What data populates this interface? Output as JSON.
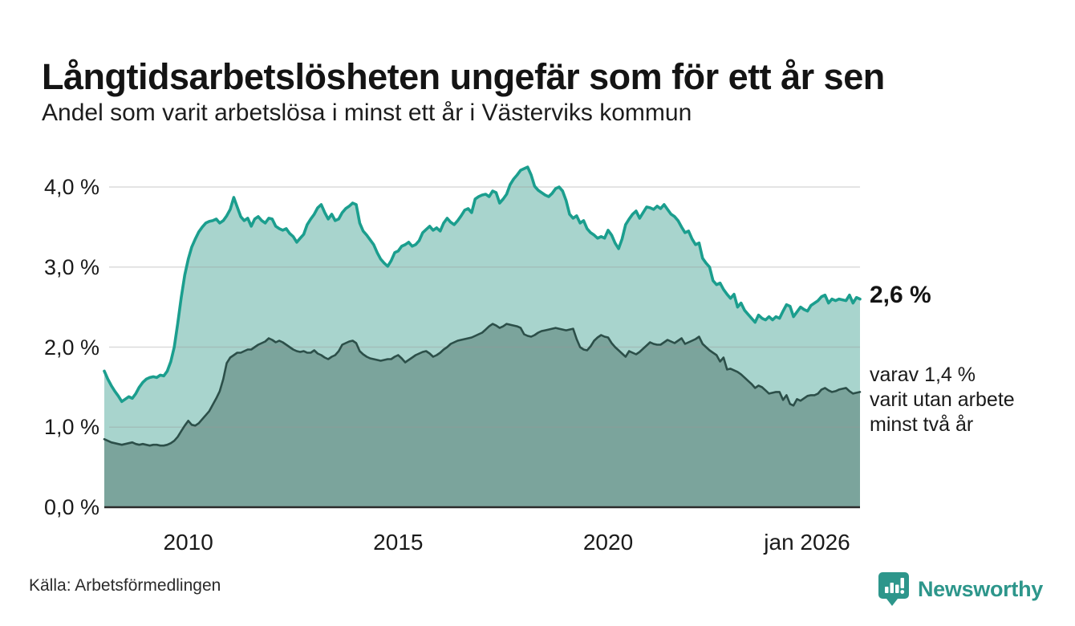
{
  "header": {
    "title": "Långtidsarbetslösheten ungefär som för ett år sen",
    "subtitle": "Andel som varit arbetslösa i minst ett år i Västerviks kommun"
  },
  "annotations": {
    "latest_value_label": "2,6 %",
    "secondary_label": "varav 1,4 %\nvarit utan arbete\nminst två år"
  },
  "footer": {
    "source": "Källa: Arbetsförmedlingen",
    "brand": "Newsworthy"
  },
  "colors": {
    "line_primary": "#1b9e8e",
    "fill_primary": "#a8d4cd",
    "line_secondary": "#2c4f49",
    "fill_secondary": "#7ba49c",
    "gridline": "#999999",
    "axis": "#2b2b2b",
    "brand_teal": "#2d968b"
  },
  "chart_data": {
    "type": "area",
    "title": "Långtidsarbetslösheten ungefär som för ett år sen",
    "subtitle": "Andel som varit arbetslösa i minst ett år i Västerviks kommun",
    "x_start": "2008-01",
    "x_end": "2026-01",
    "x_tick_labels": [
      "2010",
      "2015",
      "2020",
      "jan 2026"
    ],
    "x_tick_months_from_start": [
      24,
      84,
      144,
      216
    ],
    "y_tick_labels": [
      "0,0 %",
      "1,0 %",
      "2,0 %",
      "3,0 %",
      "4,0 %"
    ],
    "y_tick_values": [
      0,
      1,
      2,
      3,
      4
    ],
    "ylim": [
      0,
      4.4
    ],
    "grid": true,
    "legend_position": "right-annotations",
    "unit": "%",
    "series": [
      {
        "name": "Andel arbetslösa minst ett år",
        "end_label": "2,6 %",
        "end_value": 2.6,
        "line_color": "#1b9e8e",
        "fill_color": "#a8d4cd",
        "values": [
          1.7,
          1.6,
          1.52,
          1.45,
          1.39,
          1.32,
          1.35,
          1.38,
          1.36,
          1.42,
          1.5,
          1.56,
          1.6,
          1.62,
          1.63,
          1.62,
          1.65,
          1.64,
          1.7,
          1.82,
          2.0,
          2.3,
          2.62,
          2.9,
          3.1,
          3.25,
          3.35,
          3.44,
          3.5,
          3.55,
          3.57,
          3.58,
          3.6,
          3.55,
          3.58,
          3.64,
          3.72,
          3.87,
          3.75,
          3.63,
          3.58,
          3.61,
          3.51,
          3.6,
          3.63,
          3.58,
          3.55,
          3.61,
          3.6,
          3.51,
          3.48,
          3.46,
          3.48,
          3.42,
          3.38,
          3.31,
          3.36,
          3.41,
          3.53,
          3.6,
          3.66,
          3.74,
          3.78,
          3.68,
          3.6,
          3.66,
          3.58,
          3.6,
          3.68,
          3.73,
          3.76,
          3.8,
          3.78,
          3.55,
          3.45,
          3.4,
          3.34,
          3.28,
          3.18,
          3.1,
          3.05,
          3.01,
          3.08,
          3.18,
          3.2,
          3.26,
          3.28,
          3.31,
          3.26,
          3.28,
          3.33,
          3.43,
          3.47,
          3.51,
          3.46,
          3.49,
          3.45,
          3.55,
          3.61,
          3.56,
          3.53,
          3.58,
          3.64,
          3.71,
          3.73,
          3.68,
          3.85,
          3.88,
          3.9,
          3.91,
          3.88,
          3.95,
          3.93,
          3.8,
          3.85,
          3.91,
          4.03,
          4.1,
          4.15,
          4.21,
          4.23,
          4.25,
          4.15,
          4.01,
          3.96,
          3.93,
          3.9,
          3.88,
          3.92,
          3.98,
          4.0,
          3.95,
          3.83,
          3.66,
          3.61,
          3.64,
          3.55,
          3.58,
          3.48,
          3.43,
          3.4,
          3.36,
          3.38,
          3.36,
          3.46,
          3.4,
          3.3,
          3.23,
          3.35,
          3.53,
          3.6,
          3.66,
          3.7,
          3.61,
          3.68,
          3.75,
          3.74,
          3.72,
          3.76,
          3.73,
          3.78,
          3.72,
          3.66,
          3.63,
          3.58,
          3.5,
          3.43,
          3.45,
          3.35,
          3.28,
          3.3,
          3.11,
          3.05,
          3.0,
          2.83,
          2.78,
          2.8,
          2.72,
          2.66,
          2.61,
          2.66,
          2.5,
          2.55,
          2.46,
          2.41,
          2.36,
          2.31,
          2.4,
          2.36,
          2.34,
          2.38,
          2.34,
          2.38,
          2.36,
          2.45,
          2.53,
          2.51,
          2.38,
          2.44,
          2.5,
          2.47,
          2.45,
          2.52,
          2.55,
          2.58,
          2.63,
          2.65,
          2.55,
          2.6,
          2.58,
          2.6,
          2.59,
          2.58,
          2.65,
          2.55,
          2.62,
          2.6
        ]
      },
      {
        "name": "varav utan arbete minst två år",
        "end_label": "varav 1,4 % varit utan arbete minst två år",
        "end_value": 1.4,
        "line_color": "#2c4f49",
        "fill_color": "#7ba49c",
        "values": [
          0.85,
          0.83,
          0.81,
          0.8,
          0.79,
          0.78,
          0.79,
          0.8,
          0.81,
          0.79,
          0.78,
          0.79,
          0.78,
          0.77,
          0.78,
          0.78,
          0.77,
          0.77,
          0.78,
          0.8,
          0.83,
          0.88,
          0.95,
          1.02,
          1.08,
          1.03,
          1.02,
          1.05,
          1.1,
          1.15,
          1.2,
          1.28,
          1.36,
          1.45,
          1.6,
          1.8,
          1.87,
          1.9,
          1.93,
          1.93,
          1.95,
          1.97,
          1.97,
          2.0,
          2.03,
          2.05,
          2.07,
          2.11,
          2.09,
          2.06,
          2.08,
          2.06,
          2.03,
          2.0,
          1.97,
          1.95,
          1.94,
          1.95,
          1.93,
          1.93,
          1.96,
          1.92,
          1.9,
          1.87,
          1.85,
          1.88,
          1.9,
          1.95,
          2.03,
          2.05,
          2.07,
          2.08,
          2.05,
          1.95,
          1.91,
          1.88,
          1.86,
          1.85,
          1.84,
          1.83,
          1.84,
          1.85,
          1.85,
          1.88,
          1.9,
          1.86,
          1.81,
          1.84,
          1.87,
          1.9,
          1.92,
          1.94,
          1.95,
          1.92,
          1.88,
          1.9,
          1.93,
          1.97,
          2.0,
          2.04,
          2.06,
          2.08,
          2.09,
          2.1,
          2.11,
          2.12,
          2.14,
          2.16,
          2.18,
          2.22,
          2.26,
          2.29,
          2.27,
          2.24,
          2.26,
          2.29,
          2.28,
          2.27,
          2.26,
          2.24,
          2.16,
          2.14,
          2.13,
          2.15,
          2.18,
          2.2,
          2.21,
          2.22,
          2.23,
          2.24,
          2.23,
          2.22,
          2.21,
          2.22,
          2.23,
          2.1,
          2.0,
          1.97,
          1.96,
          2.01,
          2.08,
          2.12,
          2.15,
          2.13,
          2.12,
          2.05,
          2.0,
          1.96,
          1.92,
          1.88,
          1.95,
          1.93,
          1.91,
          1.94,
          1.98,
          2.02,
          2.06,
          2.04,
          2.03,
          2.03,
          2.06,
          2.09,
          2.07,
          2.05,
          2.08,
          2.11,
          2.04,
          2.06,
          2.08,
          2.1,
          2.13,
          2.04,
          2.0,
          1.96,
          1.93,
          1.9,
          1.82,
          1.87,
          1.72,
          1.73,
          1.71,
          1.69,
          1.66,
          1.62,
          1.58,
          1.54,
          1.49,
          1.52,
          1.5,
          1.46,
          1.42,
          1.43,
          1.44,
          1.44,
          1.34,
          1.4,
          1.29,
          1.27,
          1.35,
          1.33,
          1.36,
          1.39,
          1.4,
          1.4,
          1.42,
          1.47,
          1.49,
          1.46,
          1.44,
          1.45,
          1.47,
          1.48,
          1.49,
          1.45,
          1.42,
          1.43,
          1.44
        ]
      }
    ]
  }
}
